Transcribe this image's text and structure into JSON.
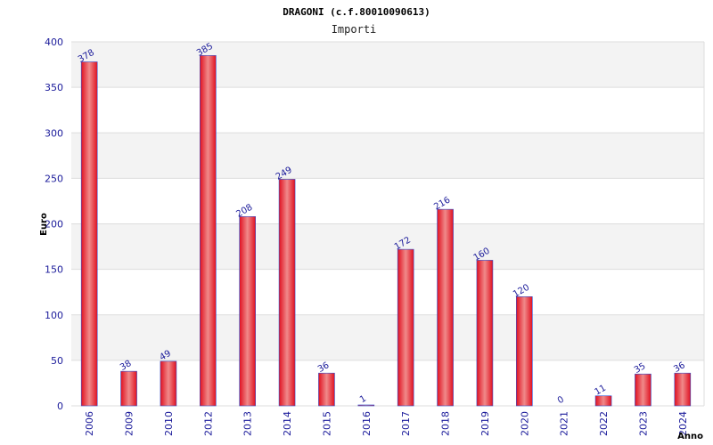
{
  "chart_data": {
    "type": "bar",
    "title": "DRAGONI (c.f.80010090613)",
    "subtitle": "Importi",
    "xlabel": "Anno",
    "ylabel": "Euro",
    "categories": [
      "2006",
      "2009",
      "2010",
      "2012",
      "2013",
      "2014",
      "2015",
      "2016",
      "2017",
      "2018",
      "2019",
      "2020",
      "2021",
      "2022",
      "2023",
      "2024"
    ],
    "values": [
      378,
      38,
      49,
      385,
      208,
      249,
      36,
      1,
      172,
      216,
      160,
      120,
      0,
      11,
      35,
      36
    ],
    "ylim": [
      0,
      400
    ],
    "yticks": [
      0,
      50,
      100,
      150,
      200,
      250,
      300,
      350,
      400
    ],
    "grid": true,
    "legend": "none",
    "colors": {
      "bar_center": "#f08a8a",
      "bar_edge": "#e01020",
      "bar_outline": "#3050d0",
      "band": "#f3f3f3",
      "gridline": "#dddddd",
      "tick_text": "#1a1a9a"
    }
  }
}
